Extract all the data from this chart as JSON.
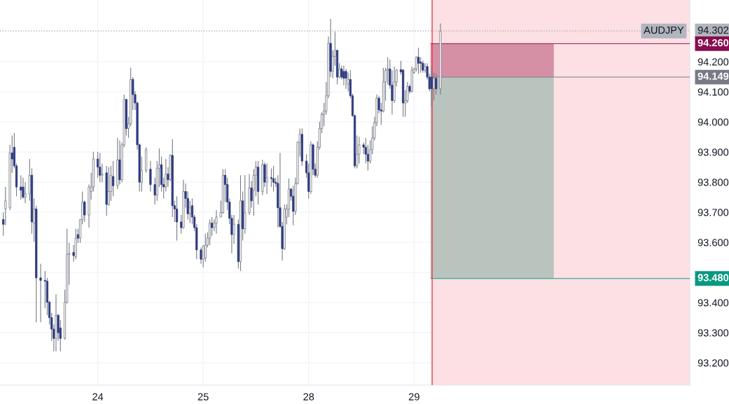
{
  "chart_data": {
    "type": "candlestick",
    "categories": [
      null,
      null,
      null,
      null,
      null,
      null,
      null,
      null,
      null,
      null,
      null,
      null,
      null,
      null,
      null,
      null,
      null,
      null,
      null,
      null,
      null,
      null,
      null,
      null,
      null,
      null,
      null,
      null,
      null,
      null,
      null,
      null,
      null,
      null,
      null,
      null,
      null,
      null,
      null,
      null,
      null,
      null,
      null,
      null,
      "24",
      null,
      null,
      null,
      null,
      null,
      null,
      null,
      null,
      null,
      null,
      null,
      null,
      null,
      null,
      null,
      null,
      null,
      null,
      null,
      null,
      null,
      null,
      null,
      null,
      null,
      null,
      null,
      null,
      null,
      null,
      null,
      null,
      null,
      null,
      null,
      null,
      null,
      null,
      null,
      null,
      null,
      null,
      null,
      null,
      null,
      null,
      null,
      "25",
      null,
      null,
      null,
      null,
      null,
      null,
      null,
      null,
      null,
      null,
      null,
      null,
      null,
      null,
      null,
      null,
      null,
      null,
      null,
      null,
      null,
      null,
      null,
      null,
      null,
      null,
      null,
      null,
      null,
      null,
      null,
      null,
      null,
      null,
      null,
      null,
      null,
      null,
      null,
      null,
      null,
      null,
      null,
      null,
      null,
      null,
      null,
      "28",
      null,
      null,
      null,
      null,
      null,
      null,
      null,
      null,
      null,
      null,
      null,
      null,
      null,
      null,
      null,
      null,
      null,
      null,
      null,
      null,
      null,
      null,
      null,
      null,
      null,
      null,
      null,
      null,
      null,
      null,
      null,
      null,
      null,
      null,
      null,
      null,
      null,
      null,
      null,
      null,
      null,
      null,
      null,
      null,
      null,
      null,
      null,
      "29",
      null,
      null,
      null,
      null,
      null,
      null,
      null,
      null,
      null,
      null,
      null,
      null,
      null,
      null,
      null,
      null,
      null,
      null,
      null,
      null,
      null,
      null,
      null,
      null,
      null,
      null,
      null,
      null,
      null,
      null,
      null,
      null,
      null,
      null,
      null,
      null,
      null,
      null,
      null,
      null,
      null,
      null,
      null,
      null,
      null,
      null,
      null,
      null,
      null,
      null,
      null,
      null,
      null,
      null,
      null,
      null,
      null,
      null,
      null,
      null,
      null,
      null,
      null,
      null,
      null,
      null,
      null,
      null,
      null,
      null,
      null,
      null,
      null,
      null,
      null,
      null,
      null,
      null,
      null,
      null,
      null,
      null,
      null,
      null,
      null,
      null,
      null,
      null,
      null,
      null,
      null,
      null,
      null,
      null,
      null,
      null,
      null,
      null,
      null,
      null,
      null,
      null,
      null,
      null,
      null,
      null,
      null,
      null,
      null,
      null,
      null,
      null,
      null,
      null,
      null,
      null,
      null,
      null,
      null,
      null,
      null,
      null,
      null,
      null,
      null
    ],
    "ohlc": [
      null,
      [
        93.676,
        93.699,
        93.622,
        93.66
      ],
      [
        93.711,
        93.784,
        93.657,
        93.738
      ],
      null,
      [
        93.715,
        93.924,
        93.707,
        93.897
      ],
      [
        93.897,
        93.955,
        93.831,
        93.877
      ],
      [
        93.916,
        93.963,
        93.846,
        93.854
      ],
      [
        93.854,
        93.862,
        93.753,
        93.784
      ],
      null,
      [
        93.784,
        93.823,
        93.742,
        93.773
      ],
      [
        93.784,
        93.815,
        93.746,
        93.75
      ],
      [
        93.75,
        93.8,
        93.73,
        93.761
      ],
      null,
      [
        93.761,
        93.877,
        93.738,
        93.823
      ],
      [
        93.823,
        93.846,
        93.629,
        93.668
      ],
      [
        93.664,
        93.746,
        93.602,
        93.711
      ],
      [
        93.711,
        93.722,
        93.335,
        93.482
      ],
      null,
      [
        93.482,
        93.529,
        93.335,
        93.474
      ],
      null,
      [
        93.474,
        93.505,
        93.381,
        93.471
      ],
      [
        93.471,
        93.482,
        93.358,
        93.401
      ],
      [
        93.401,
        93.405,
        93.327,
        93.35
      ],
      [
        93.35,
        93.366,
        93.273,
        93.312
      ],
      [
        93.312,
        93.327,
        93.238,
        93.281
      ],
      [
        93.281,
        93.428,
        93.238,
        93.358
      ],
      [
        93.358,
        93.362,
        93.273,
        93.3
      ],
      [
        93.316,
        93.343,
        93.238,
        93.281
      ],
      null,
      [
        93.281,
        93.443,
        93.277,
        93.401
      ],
      [
        93.401,
        93.645,
        93.397,
        93.56
      ],
      [
        93.56,
        93.598,
        93.459,
        93.564
      ],
      null,
      [
        93.567,
        93.591,
        93.536,
        93.556
      ],
      [
        93.552,
        93.645,
        93.544,
        93.614
      ],
      [
        93.626,
        93.645,
        93.598,
        93.614
      ],
      [
        93.614,
        93.676,
        93.598,
        93.676
      ],
      [
        93.676,
        93.769,
        93.66,
        93.734
      ],
      [
        93.734,
        93.738,
        93.668,
        93.691
      ],
      null,
      [
        93.691,
        93.792,
        93.649,
        93.784
      ],
      [
        93.769,
        93.831,
        93.742,
        93.784
      ],
      [
        93.784,
        93.901,
        93.769,
        93.877
      ],
      null,
      [
        93.877,
        93.901,
        93.815,
        93.85
      ],
      [
        93.85,
        93.897,
        93.8,
        93.823
      ],
      [
        93.823,
        93.862,
        93.8,
        93.827
      ],
      null,
      [
        93.831,
        93.854,
        93.688,
        93.726
      ],
      [
        93.726,
        93.85,
        93.722,
        93.769
      ],
      [
        93.769,
        93.854,
        93.738,
        93.823
      ],
      [
        93.819,
        93.87,
        93.753,
        93.788
      ],
      null,
      [
        93.788,
        93.947,
        93.777,
        93.874
      ],
      [
        93.874,
        93.939,
        93.792,
        93.808
      ],
      [
        93.808,
        93.932,
        93.8,
        93.924
      ],
      [
        93.924,
        94.091,
        93.916,
        94.075
      ],
      [
        94.075,
        94.075,
        93.955,
        93.978
      ],
      [
        93.978,
        94.017,
        93.947,
        93.994
      ],
      [
        93.994,
        94.18,
        93.986,
        94.141
      ],
      [
        94.141,
        94.149,
        94.04,
        94.091
      ],
      [
        94.091,
        94.102,
        94.04,
        94.063
      ],
      [
        94.063,
        94.067,
        93.908,
        93.924
      ],
      [
        93.924,
        93.928,
        93.769,
        93.8
      ],
      [
        93.8,
        93.885,
        93.769,
        93.839
      ],
      null,
      [
        93.839,
        93.916,
        93.831,
        93.908
      ],
      null,
      [
        93.843,
        93.87,
        93.769,
        93.792
      ],
      null,
      [
        93.792,
        93.815,
        93.726,
        93.757
      ],
      [
        93.757,
        93.87,
        93.738,
        93.846
      ],
      [
        93.846,
        93.912,
        93.784,
        93.858
      ],
      [
        93.858,
        93.885,
        93.769,
        93.792
      ],
      [
        93.792,
        93.815,
        93.746,
        93.784
      ],
      [
        93.784,
        93.877,
        93.769,
        93.827
      ],
      [
        93.827,
        93.85,
        93.784,
        93.808
      ],
      [
        93.808,
        93.893,
        93.804,
        93.889
      ],
      [
        93.889,
        93.943,
        93.684,
        93.722
      ],
      [
        93.722,
        93.738,
        93.668,
        93.711
      ],
      [
        93.711,
        93.753,
        93.606,
        93.668
      ],
      null,
      [
        93.668,
        93.691,
        93.629,
        93.649
      ],
      [
        93.649,
        93.808,
        93.645,
        93.769
      ],
      [
        93.769,
        93.796,
        93.715,
        93.746
      ],
      [
        93.746,
        93.769,
        93.676,
        93.695
      ],
      [
        93.695,
        93.738,
        93.664,
        93.715
      ],
      [
        93.722,
        93.746,
        93.66,
        93.684
      ],
      [
        93.684,
        93.691,
        93.637,
        93.649
      ],
      [
        93.649,
        93.66,
        93.544,
        93.575
      ],
      null,
      [
        93.575,
        93.583,
        93.529,
        93.544
      ],
      [
        93.544,
        93.591,
        93.517,
        93.587
      ],
      [
        93.548,
        93.629,
        93.536,
        93.591
      ],
      [
        93.591,
        93.633,
        93.583,
        93.614
      ],
      [
        93.614,
        93.676,
        93.591,
        93.664
      ],
      [
        93.664,
        93.684,
        93.622,
        93.649
      ],
      [
        93.649,
        93.676,
        93.637,
        93.664
      ],
      [
        93.664,
        93.707,
        93.629,
        93.684
      ],
      null,
      [
        93.684,
        93.738,
        93.684,
        93.699
      ],
      [
        93.699,
        93.843,
        93.695,
        93.823
      ],
      [
        93.823,
        93.843,
        93.734,
        93.792
      ],
      [
        93.792,
        93.815,
        93.707,
        93.734
      ],
      [
        93.734,
        93.746,
        93.66,
        93.68
      ],
      [
        93.68,
        93.691,
        93.564,
        93.626
      ],
      [
        93.626,
        93.691,
        93.595,
        93.66
      ],
      null,
      [
        93.66,
        93.676,
        93.513,
        93.536
      ],
      [
        93.536,
        93.823,
        93.505,
        93.738
      ],
      [
        93.738,
        93.769,
        93.606,
        93.645
      ],
      [
        93.645,
        93.823,
        93.629,
        93.699
      ],
      null,
      [
        93.699,
        93.827,
        93.691,
        93.781
      ],
      [
        93.781,
        93.804,
        93.715,
        93.738
      ],
      [
        93.773,
        93.843,
        93.688,
        93.823
      ],
      [
        93.823,
        93.87,
        93.753,
        93.85
      ],
      [
        93.85,
        93.87,
        93.726,
        93.769
      ],
      null,
      [
        93.769,
        93.874,
        93.757,
        93.858
      ],
      [
        93.858,
        93.866,
        93.784,
        93.8
      ],
      [
        93.8,
        93.862,
        93.761,
        93.815
      ],
      null,
      [
        93.815,
        93.846,
        93.784,
        93.812
      ],
      [
        93.812,
        93.854,
        93.769,
        93.8
      ],
      [
        93.8,
        93.815,
        93.784,
        93.796
      ],
      [
        93.796,
        93.823,
        93.649,
        93.715
      ],
      [
        93.715,
        93.897,
        93.649,
        93.653
      ],
      [
        93.653,
        93.668,
        93.54,
        93.579
      ],
      [
        93.579,
        93.726,
        93.575,
        93.711
      ],
      [
        93.684,
        93.726,
        93.66,
        93.711
      ],
      [
        93.711,
        93.812,
        93.684,
        93.777
      ],
      [
        93.777,
        93.781,
        93.738,
        93.753
      ],
      [
        93.753,
        93.788,
        93.657,
        93.703
      ],
      [
        93.703,
        93.815,
        93.691,
        93.796
      ],
      [
        93.796,
        93.936,
        93.792,
        93.932
      ],
      [
        93.932,
        93.978,
        93.885,
        93.959
      ],
      [
        93.959,
        93.978,
        93.854,
        93.87
      ],
      null,
      [
        93.87,
        93.893,
        93.815,
        93.831
      ],
      [
        93.831,
        93.862,
        93.746,
        93.769
      ],
      [
        93.769,
        93.936,
        93.761,
        93.924
      ],
      [
        93.924,
        93.928,
        93.823,
        93.843
      ],
      [
        93.843,
        93.862,
        93.815,
        93.823
      ],
      [
        93.823,
        93.936,
        93.815,
        93.916
      ],
      [
        93.916,
        94.001,
        93.908,
        93.978
      ],
      [
        93.978,
        94.032,
        93.963,
        94.025
      ],
      [
        94.025,
        94.063,
        93.986,
        94.036
      ],
      [
        94.036,
        94.133,
        94.025,
        94.087
      ],
      [
        94.087,
        94.284,
        94.079,
        94.261
      ],
      [
        94.261,
        94.342,
        94.149,
        94.168
      ],
      [
        94.168,
        94.238,
        94.145,
        94.218
      ],
      [
        94.218,
        94.3,
        94.187,
        94.238
      ],
      [
        94.238,
        94.238,
        94.125,
        94.149
      ],
      [
        94.149,
        94.195,
        94.145,
        94.176
      ],
      [
        94.176,
        94.187,
        94.141,
        94.149
      ],
      [
        94.168,
        94.187,
        94.122,
        94.145
      ],
      [
        94.168,
        94.176,
        94.11,
        94.145
      ],
      [
        94.125,
        94.164,
        94.102,
        94.141
      ],
      [
        94.141,
        94.172,
        94.079,
        94.087
      ],
      [
        94.087,
        94.094,
        94.017,
        94.021
      ],
      [
        94.021,
        94.025,
        93.846,
        93.854
      ],
      [
        93.854,
        93.955,
        93.846,
        93.893
      ],
      [
        93.893,
        93.951,
        93.862,
        93.924
      ],
      null,
      [
        93.924,
        93.932,
        93.893,
        93.916
      ],
      [
        93.916,
        93.947,
        93.862,
        93.893
      ],
      [
        93.893,
        93.924,
        93.839,
        93.87
      ],
      [
        93.87,
        93.939,
        93.862,
        93.908
      ],
      [
        93.908,
        93.986,
        93.893,
        93.947
      ],
      [
        93.947,
        94.017,
        93.939,
        93.998
      ],
      [
        93.998,
        94.091,
        93.986,
        94.079
      ],
      [
        94.079,
        94.087,
        94.029,
        94.04
      ],
      [
        94.04,
        94.063,
        93.99,
        94.036
      ],
      [
        94.036,
        94.18,
        94.032,
        94.133
      ],
      [
        94.133,
        94.18,
        94.071,
        94.172
      ],
      [
        94.172,
        94.215,
        94.125,
        94.176
      ],
      [
        94.176,
        94.207,
        94.11,
        94.122
      ],
      [
        94.122,
        94.172,
        94.025,
        94.071
      ],
      [
        94.071,
        94.184,
        94.063,
        94.133
      ],
      [
        94.133,
        94.176,
        94.118,
        94.172
      ],
      null,
      [
        94.174,
        94.203,
        94.157,
        94.166
      ],
      [
        94.172,
        94.176,
        94.017,
        94.063
      ],
      [
        94.063,
        94.106,
        94.017,
        94.071
      ],
      [
        94.071,
        94.133,
        94.063,
        94.118
      ],
      [
        94.118,
        94.125,
        94.094,
        94.102
      ],
      [
        94.102,
        94.184,
        94.098,
        94.172
      ],
      [
        94.164,
        94.18,
        94.16,
        94.176
      ],
      [
        94.176,
        94.218,
        94.168,
        94.215
      ],
      [
        94.215,
        94.246,
        94.16,
        94.195
      ],
      [
        94.199,
        94.215,
        94.164,
        94.195
      ],
      [
        94.195,
        94.203,
        94.164,
        94.172
      ],
      [
        94.172,
        94.195,
        94.164,
        94.184
      ],
      [
        94.184,
        94.195,
        94.141,
        94.149
      ],
      [
        94.149,
        94.16,
        94.102,
        94.11
      ],
      [
        94.149,
        94.18,
        94.052,
        94.11
      ],
      [
        94.11,
        94.164,
        94.071,
        94.145
      ],
      [
        94.145,
        94.16,
        94.091,
        94.11
      ],
      null,
      [
        94.11,
        94.327,
        94.091,
        94.302
      ],
      null,
      null,
      null,
      null,
      null,
      null,
      null,
      null,
      null,
      null,
      null,
      null,
      null,
      null,
      null,
      null,
      null,
      null,
      null,
      null,
      null,
      null,
      null,
      null,
      null,
      null,
      null,
      null,
      null,
      null,
      null,
      null,
      null,
      null,
      null,
      null,
      null,
      null,
      null,
      null,
      null,
      null,
      null,
      null,
      null,
      null,
      null,
      null,
      null,
      null,
      null,
      null,
      null,
      null,
      null,
      null,
      null,
      null,
      null,
      null,
      null,
      null,
      null,
      null,
      null,
      null,
      null,
      null,
      null,
      null,
      null,
      null,
      null,
      null,
      null,
      null,
      null,
      null,
      null,
      null,
      null,
      null,
      null,
      null,
      null,
      null,
      null,
      null,
      null,
      null,
      null,
      null,
      null,
      null,
      null,
      null,
      null,
      null,
      null,
      null,
      null,
      null,
      null,
      null,
      null,
      null,
      null,
      null,
      null,
      null,
      null,
      null,
      null
    ],
    "ylim": [
      93.126,
      94.405
    ],
    "yticks": [
      {
        "value": 93.2,
        "label": "93.200"
      },
      {
        "value": 93.3,
        "label": "93.300"
      },
      {
        "value": 93.4,
        "label": "93.400"
      },
      {
        "value": 93.5,
        "label": null
      },
      {
        "value": 93.6,
        "label": "93.600"
      },
      {
        "value": 93.7,
        "label": "93.700"
      },
      {
        "value": 93.8,
        "label": "93.800"
      },
      {
        "value": 93.9,
        "label": "93.900"
      },
      {
        "value": 94.0,
        "label": "94.000"
      },
      {
        "value": 94.1,
        "label": "94.100"
      },
      {
        "value": 94.2,
        "label": "94.200"
      }
    ],
    "ref_lines": [
      {
        "axis": "y",
        "value": 94.302,
        "label": "94.302",
        "color": "#b2b5be",
        "line_style": "dotted"
      },
      {
        "axis": "y",
        "value": 94.26,
        "label": "94.260",
        "color": "#880e4f",
        "line_style": "solid"
      },
      {
        "axis": "y",
        "value": 94.149,
        "label": "94.149",
        "color": "#787b86",
        "line_style": "solid"
      },
      {
        "axis": "y",
        "value": 93.48,
        "label": "93.480",
        "color": "#089981",
        "line_style": "solid"
      }
    ],
    "bands": [
      {
        "axis": "y",
        "from": 94.149,
        "to": 94.26,
        "color": "#d0879f"
      },
      {
        "axis": "y",
        "from": 93.48,
        "to": 94.149,
        "color": "#b2c1ba"
      }
    ],
    "annotations": [
      "AUDJPY"
    ],
    "grid": true
  }
}
